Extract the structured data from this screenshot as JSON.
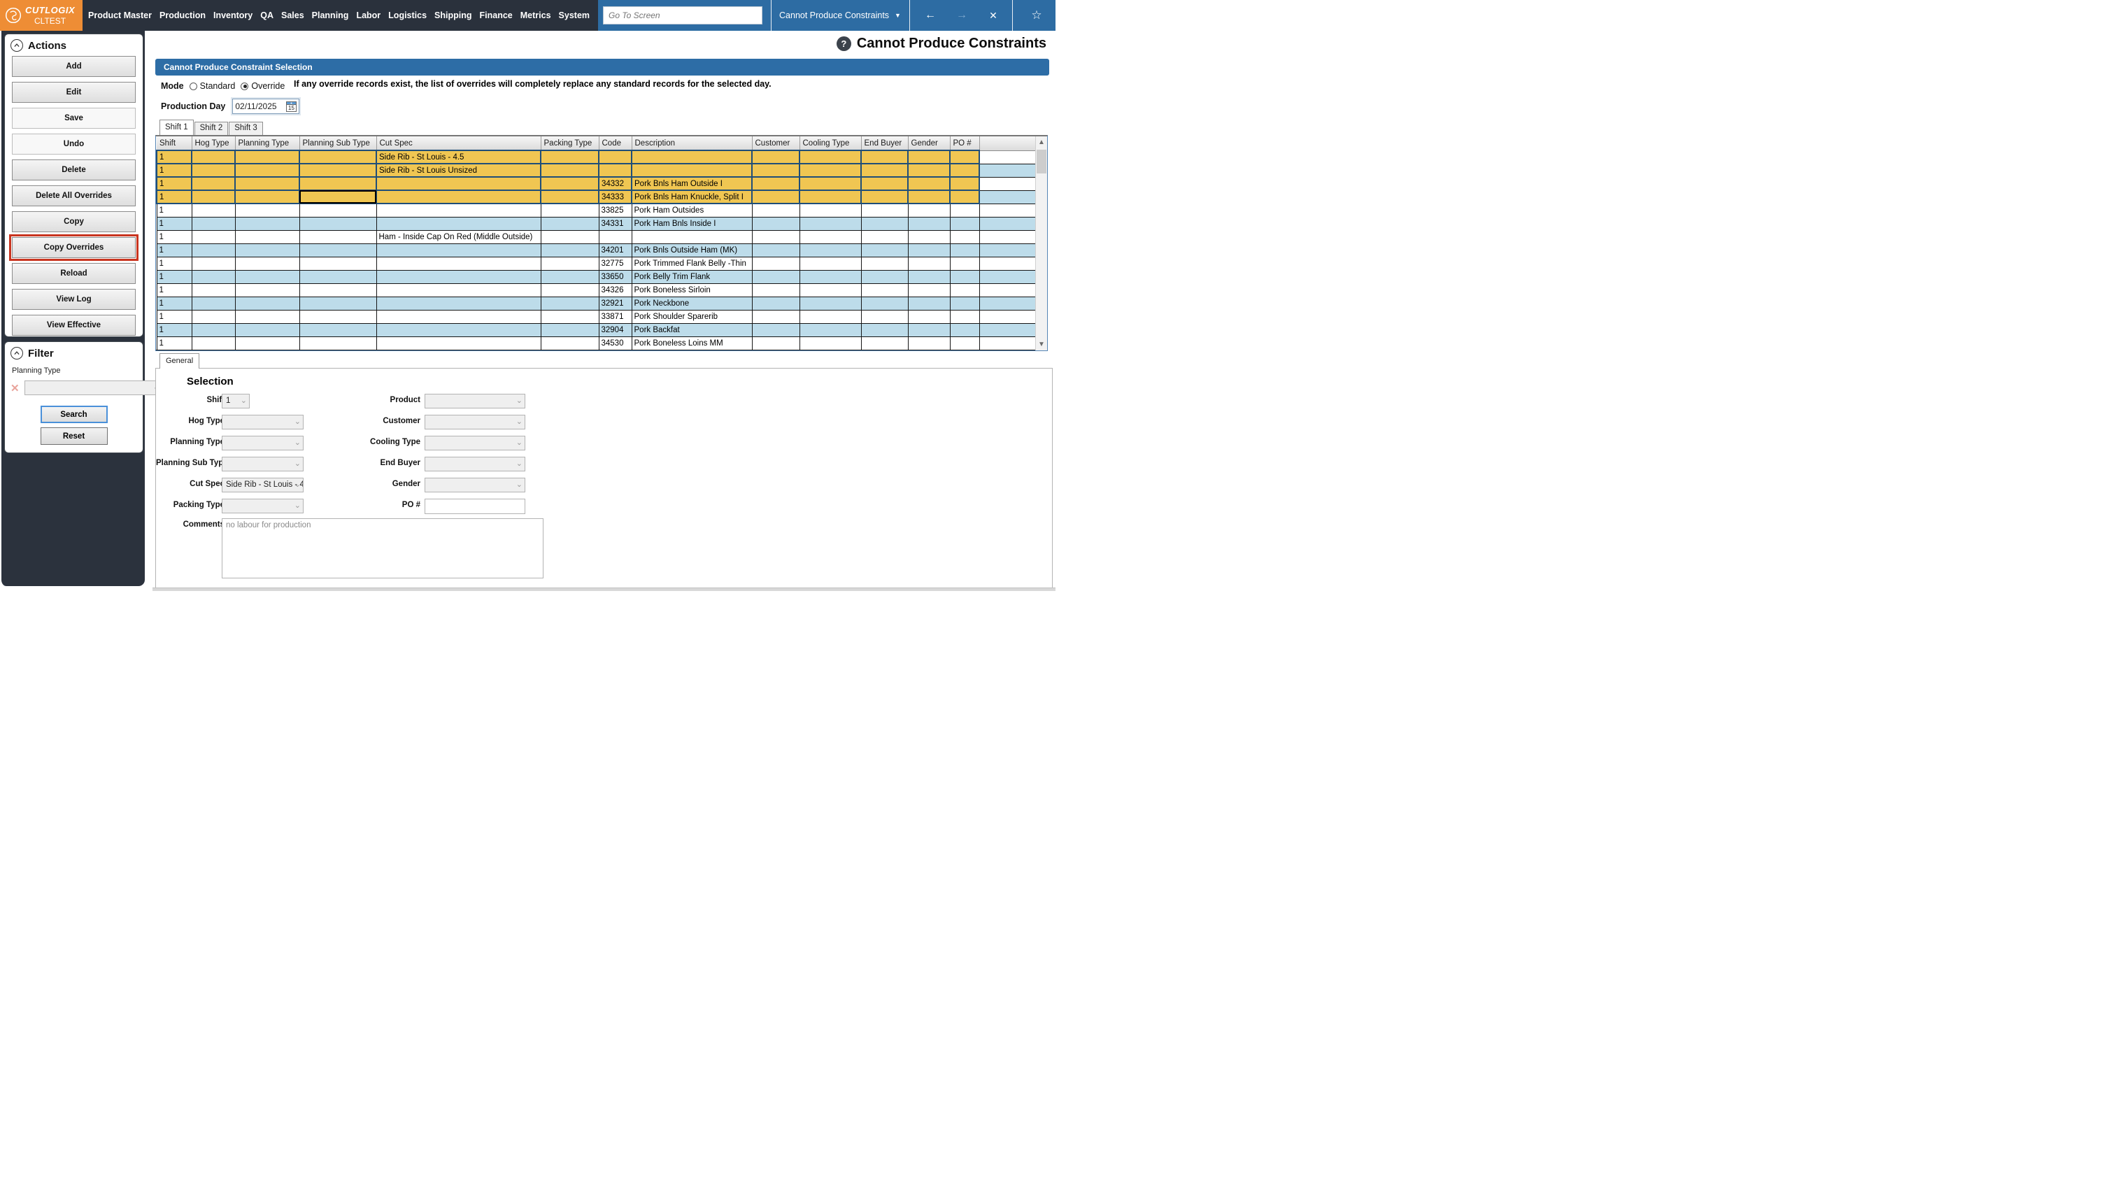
{
  "nav": {
    "brand": "CUTLOGIX",
    "environment": "CLTEST",
    "items": [
      "Product Master",
      "Production",
      "Inventory",
      "QA",
      "Sales",
      "Planning",
      "Labor",
      "Logistics",
      "Shipping",
      "Finance",
      "Metrics",
      "System"
    ],
    "goto_placeholder": "Go To Screen",
    "screen_selector": "Cannot Produce Constraints",
    "icons": {
      "dropdown": "▼",
      "back": "←",
      "forward": "→",
      "close": "✕",
      "favorite": "☆"
    }
  },
  "page": {
    "title": "Cannot Produce Constraints",
    "help_glyph": "?"
  },
  "selection_header": "Cannot Produce Constraint Selection",
  "mode": {
    "label": "Mode",
    "options": [
      {
        "label": "Standard",
        "selected": false
      },
      {
        "label": "Override",
        "selected": true
      }
    ],
    "note": "If any override records exist, the list of overrides will completely replace any standard records for the selected day."
  },
  "production_day": {
    "label": "Production Day",
    "value": "02/11/2025",
    "calendar_day": "15"
  },
  "shift_tabs": [
    {
      "label": "Shift 1",
      "active": true
    },
    {
      "label": "Shift 2",
      "active": false
    },
    {
      "label": "Shift 3",
      "active": false
    }
  ],
  "grid": {
    "columns": [
      "Shift",
      "Hog Type",
      "Planning Type",
      "Planning Sub Type",
      "Cut Spec",
      "Packing Type",
      "Code",
      "Description",
      "Customer",
      "Cooling Type",
      "End Buyer",
      "Gender",
      "PO #"
    ],
    "rows": [
      {
        "state": "selected",
        "cells": [
          "1",
          "",
          "",
          "",
          "Side Rib - St Louis - 4.5",
          "",
          "",
          "",
          "",
          "",
          "",
          "",
          ""
        ]
      },
      {
        "state": "selected",
        "cells": [
          "1",
          "",
          "",
          "",
          "Side Rib - St Louis Unsized",
          "",
          "",
          "",
          "",
          "",
          "",
          "",
          ""
        ]
      },
      {
        "state": "selected",
        "cells": [
          "1",
          "",
          "",
          "",
          "",
          "",
          "34332",
          "Pork Bnls Ham Outside I",
          "",
          "",
          "",
          "",
          ""
        ]
      },
      {
        "state": "selected",
        "focused_col": 3,
        "cells": [
          "1",
          "",
          "",
          "",
          "",
          "",
          "34333",
          "Pork Bnls Ham Knuckle, Split I",
          "",
          "",
          "",
          "",
          ""
        ]
      },
      {
        "state": "white",
        "cells": [
          "1",
          "",
          "",
          "",
          "",
          "",
          "33825",
          "Pork Ham Outsides",
          "",
          "",
          "",
          "",
          ""
        ]
      },
      {
        "state": "blue",
        "cells": [
          "1",
          "",
          "",
          "",
          "",
          "",
          "34331",
          "Pork Ham Bnls Inside I",
          "",
          "",
          "",
          "",
          ""
        ]
      },
      {
        "state": "white",
        "cells": [
          "1",
          "",
          "",
          "",
          "Ham - Inside Cap On Red (Middle Outside)",
          "",
          "",
          "",
          "",
          "",
          "",
          "",
          ""
        ]
      },
      {
        "state": "blue",
        "cells": [
          "1",
          "",
          "",
          "",
          "",
          "",
          "34201",
          "Pork Bnls Outside Ham (MK)",
          "",
          "",
          "",
          "",
          ""
        ]
      },
      {
        "state": "white",
        "cells": [
          "1",
          "",
          "",
          "",
          "",
          "",
          "32775",
          "Pork Trimmed Flank Belly -Thin",
          "",
          "",
          "",
          "",
          ""
        ]
      },
      {
        "state": "blue",
        "cells": [
          "1",
          "",
          "",
          "",
          "",
          "",
          "33650",
          "Pork Belly Trim Flank",
          "",
          "",
          "",
          "",
          ""
        ]
      },
      {
        "state": "white",
        "cells": [
          "1",
          "",
          "",
          "",
          "",
          "",
          "34326",
          "Pork Boneless Sirloin",
          "",
          "",
          "",
          "",
          ""
        ]
      },
      {
        "state": "blue",
        "cells": [
          "1",
          "",
          "",
          "",
          "",
          "",
          "32921",
          "Pork Neckbone",
          "",
          "",
          "",
          "",
          ""
        ]
      },
      {
        "state": "white",
        "cells": [
          "1",
          "",
          "",
          "",
          "",
          "",
          "33871",
          "Pork Shoulder Sparerib",
          "",
          "",
          "",
          "",
          ""
        ]
      },
      {
        "state": "blue",
        "cells": [
          "1",
          "",
          "",
          "",
          "",
          "",
          "32904",
          "Pork Backfat",
          "",
          "",
          "",
          "",
          ""
        ]
      },
      {
        "state": "white",
        "cells": [
          "1",
          "",
          "",
          "",
          "",
          "",
          "34530",
          "Pork Boneless Loins MM",
          "",
          "",
          "",
          "",
          ""
        ]
      }
    ]
  },
  "actions": {
    "title": "Actions",
    "buttons": [
      {
        "label": "Add"
      },
      {
        "label": "Edit"
      },
      {
        "label": "Save",
        "disabled": true
      },
      {
        "label": "Undo",
        "disabled": true
      },
      {
        "label": "Delete"
      },
      {
        "label": "Delete All Overrides"
      },
      {
        "label": "Copy"
      },
      {
        "label": "Copy Overrides",
        "highlighted": true
      },
      {
        "label": "Reload"
      },
      {
        "label": "View Log"
      },
      {
        "label": "View Effective"
      }
    ]
  },
  "filter": {
    "title": "Filter",
    "field_label": "Planning Type",
    "dropdown_value": "",
    "search_label": "Search",
    "reset_label": "Reset"
  },
  "detail": {
    "tab_label": "General",
    "heading": "Selection",
    "left_fields": [
      {
        "label": "Shift",
        "type": "select",
        "value": "1"
      },
      {
        "label": "Hog Type",
        "type": "select",
        "value": ""
      },
      {
        "label": "Planning Type",
        "type": "select",
        "value": ""
      },
      {
        "label": "Planning Sub Type",
        "type": "select",
        "value": ""
      },
      {
        "label": "Cut Spec",
        "type": "select",
        "value": "Side Rib - St Louis - 4"
      },
      {
        "label": "Packing Type",
        "type": "select",
        "value": ""
      },
      {
        "label": "Comments",
        "type": "textarea",
        "value": "no labour for production"
      }
    ],
    "right_fields": [
      {
        "label": "Product",
        "type": "select",
        "value": ""
      },
      {
        "label": "Customer",
        "type": "select",
        "value": ""
      },
      {
        "label": "Cooling Type",
        "type": "select",
        "value": ""
      },
      {
        "label": "End Buyer",
        "type": "select",
        "value": ""
      },
      {
        "label": "Gender",
        "type": "select",
        "value": ""
      },
      {
        "label": "PO #",
        "type": "input",
        "value": ""
      }
    ]
  },
  "colors": {
    "topbar_dark": "#2a313c",
    "brand_orange": "#ee8d35",
    "topbar_blue": "#2d6ca3",
    "section_blue": "#2d6da6",
    "row_selected_yellow": "#f0c652",
    "row_alt_blue": "#bddcea",
    "selected_border_navy": "#1f4e79",
    "highlight_red": "#c9341f"
  }
}
